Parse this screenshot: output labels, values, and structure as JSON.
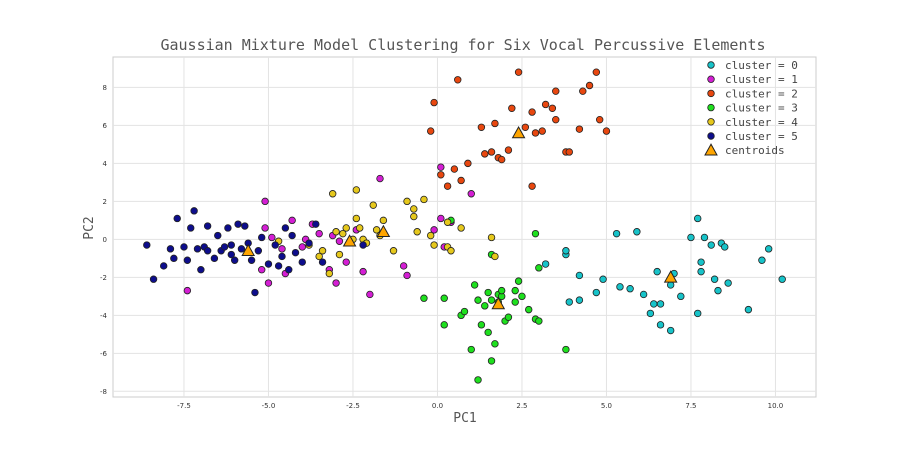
{
  "chart_data": {
    "type": "scatter",
    "title": "Gaussian Mixture Model Clustering for Six Vocal Percussive Elements",
    "xlabel": "PC1",
    "ylabel": "PC2",
    "xlim": [
      -9.6,
      11.2
    ],
    "ylim": [
      -8.3,
      9.6
    ],
    "xticks": [
      -7.5,
      -5.0,
      -2.5,
      0.0,
      2.5,
      5.0,
      7.5,
      10.0
    ],
    "xtick_labels": [
      "-7.5",
      "-5.0",
      "-2.5",
      "0.0",
      "2.5",
      "5.0",
      "7.5",
      "10.0"
    ],
    "yticks": [
      -8,
      -6,
      -4,
      -2,
      0,
      2,
      4,
      6,
      8
    ],
    "ytick_labels": [
      "-8",
      "-6",
      "-4",
      "-2",
      "0",
      "2",
      "4",
      "6",
      "8"
    ],
    "grid": true,
    "legend_position": "top-right",
    "series": [
      {
        "name": "cluster = 0",
        "color": "#17c3c9",
        "points": [
          [
            3.8,
            -0.8
          ],
          [
            4.2,
            -1.9
          ],
          [
            3.9,
            -3.3
          ],
          [
            4.2,
            -3.2
          ],
          [
            4.7,
            -2.8
          ],
          [
            4.9,
            -2.1
          ],
          [
            5.3,
            0.3
          ],
          [
            5.4,
            -2.5
          ],
          [
            5.9,
            0.4
          ],
          [
            6.1,
            -2.9
          ],
          [
            6.3,
            -3.9
          ],
          [
            6.4,
            -3.4
          ],
          [
            6.5,
            -1.7
          ],
          [
            6.6,
            -3.4
          ],
          [
            6.6,
            -4.5
          ],
          [
            6.9,
            -2.4
          ],
          [
            6.9,
            -4.8
          ],
          [
            7.0,
            -1.8
          ],
          [
            7.2,
            -3.0
          ],
          [
            7.5,
            0.1
          ],
          [
            7.7,
            1.1
          ],
          [
            7.7,
            -3.9
          ],
          [
            7.8,
            -1.2
          ],
          [
            7.9,
            0.1
          ],
          [
            7.8,
            -1.7
          ],
          [
            8.1,
            -0.3
          ],
          [
            8.2,
            -2.1
          ],
          [
            8.3,
            -2.7
          ],
          [
            8.4,
            -0.2
          ],
          [
            8.5,
            -0.4
          ],
          [
            8.6,
            -2.3
          ],
          [
            9.2,
            -3.7
          ],
          [
            9.6,
            -1.1
          ],
          [
            9.8,
            -0.5
          ],
          [
            10.2,
            -2.1
          ],
          [
            3.2,
            -1.3
          ],
          [
            3.8,
            -0.6
          ],
          [
            5.7,
            -2.6
          ]
        ]
      },
      {
        "name": "cluster = 1",
        "color": "#d41ed4",
        "points": [
          [
            -7.4,
            -2.7
          ],
          [
            -5.2,
            -1.6
          ],
          [
            -5.1,
            0.6
          ],
          [
            -5.1,
            2.0
          ],
          [
            -5.0,
            -2.3
          ],
          [
            -4.9,
            0.1
          ],
          [
            -4.6,
            -0.5
          ],
          [
            -4.5,
            -1.8
          ],
          [
            -4.3,
            1.0
          ],
          [
            -4.0,
            -0.4
          ],
          [
            -3.9,
            0.0
          ],
          [
            -3.7,
            0.8
          ],
          [
            -3.5,
            0.3
          ],
          [
            -3.2,
            -1.6
          ],
          [
            -3.0,
            -2.3
          ],
          [
            -2.9,
            -0.1
          ],
          [
            -2.7,
            -1.2
          ],
          [
            -2.2,
            -1.7
          ],
          [
            -2.0,
            -2.9
          ],
          [
            -1.7,
            3.2
          ],
          [
            -1.0,
            -1.4
          ],
          [
            -0.9,
            -1.9
          ],
          [
            -0.1,
            0.5
          ],
          [
            0.1,
            1.1
          ],
          [
            0.1,
            3.8
          ],
          [
            0.4,
            0.9
          ],
          [
            0.2,
            -0.4
          ],
          [
            1.0,
            2.4
          ],
          [
            -2.4,
            0.5
          ],
          [
            -3.1,
            0.2
          ]
        ]
      },
      {
        "name": "cluster = 2",
        "color": "#e8470f",
        "points": [
          [
            -0.2,
            5.7
          ],
          [
            -0.1,
            7.2
          ],
          [
            0.1,
            3.4
          ],
          [
            0.3,
            2.8
          ],
          [
            0.6,
            8.4
          ],
          [
            0.7,
            3.1
          ],
          [
            0.9,
            4.0
          ],
          [
            1.3,
            5.9
          ],
          [
            1.4,
            4.5
          ],
          [
            1.6,
            4.6
          ],
          [
            1.7,
            6.1
          ],
          [
            1.8,
            4.3
          ],
          [
            1.9,
            4.2
          ],
          [
            2.1,
            4.7
          ],
          [
            2.2,
            6.9
          ],
          [
            2.4,
            8.8
          ],
          [
            2.6,
            5.9
          ],
          [
            2.8,
            6.7
          ],
          [
            2.9,
            5.6
          ],
          [
            3.1,
            5.7
          ],
          [
            3.2,
            7.1
          ],
          [
            3.4,
            6.9
          ],
          [
            3.5,
            6.3
          ],
          [
            3.5,
            7.8
          ],
          [
            3.8,
            4.6
          ],
          [
            3.9,
            4.6
          ],
          [
            4.2,
            5.8
          ],
          [
            4.3,
            7.8
          ],
          [
            4.5,
            8.1
          ],
          [
            4.7,
            8.8
          ],
          [
            4.8,
            6.3
          ],
          [
            5.0,
            5.7
          ],
          [
            2.8,
            2.8
          ],
          [
            0.5,
            3.7
          ]
        ]
      },
      {
        "name": "cluster = 3",
        "color": "#1ee01e",
        "points": [
          [
            -0.4,
            -3.1
          ],
          [
            0.2,
            -4.5
          ],
          [
            0.2,
            -3.1
          ],
          [
            0.4,
            1.0
          ],
          [
            0.7,
            -4.0
          ],
          [
            0.8,
            -3.8
          ],
          [
            1.0,
            -5.8
          ],
          [
            1.1,
            -2.4
          ],
          [
            1.2,
            -3.2
          ],
          [
            1.2,
            -7.4
          ],
          [
            1.3,
            -4.5
          ],
          [
            1.4,
            -3.5
          ],
          [
            1.5,
            -2.8
          ],
          [
            1.6,
            -6.4
          ],
          [
            1.6,
            -3.2
          ],
          [
            1.6,
            -0.8
          ],
          [
            1.7,
            -5.5
          ],
          [
            1.8,
            -2.9
          ],
          [
            1.8,
            -3.3
          ],
          [
            1.9,
            -3.0
          ],
          [
            1.9,
            -2.7
          ],
          [
            2.0,
            -4.3
          ],
          [
            2.1,
            -4.1
          ],
          [
            2.3,
            -2.7
          ],
          [
            2.4,
            -2.2
          ],
          [
            2.5,
            -3.0
          ],
          [
            2.7,
            -3.7
          ],
          [
            2.9,
            0.3
          ],
          [
            2.9,
            -4.2
          ],
          [
            3.0,
            -4.3
          ],
          [
            3.0,
            -1.5
          ],
          [
            3.8,
            -5.8
          ],
          [
            1.5,
            -4.9
          ],
          [
            2.3,
            -3.3
          ]
        ]
      },
      {
        "name": "cluster = 4",
        "color": "#e6c81c",
        "points": [
          [
            -4.7,
            -0.1
          ],
          [
            -3.8,
            -0.3
          ],
          [
            -3.5,
            -0.9
          ],
          [
            -3.4,
            -0.6
          ],
          [
            -3.2,
            -1.8
          ],
          [
            -3.1,
            2.4
          ],
          [
            -3.0,
            0.4
          ],
          [
            -2.9,
            -0.8
          ],
          [
            -2.8,
            0.3
          ],
          [
            -2.7,
            0.6
          ],
          [
            -2.4,
            2.6
          ],
          [
            -2.4,
            1.1
          ],
          [
            -2.3,
            0.6
          ],
          [
            -2.2,
            0.0
          ],
          [
            -2.1,
            -0.2
          ],
          [
            -1.9,
            1.8
          ],
          [
            -1.8,
            0.5
          ],
          [
            -1.7,
            0.2
          ],
          [
            -1.6,
            1.0
          ],
          [
            -1.3,
            -0.6
          ],
          [
            -0.9,
            2.0
          ],
          [
            -0.7,
            1.6
          ],
          [
            -0.7,
            1.2
          ],
          [
            -0.6,
            0.4
          ],
          [
            -0.4,
            2.1
          ],
          [
            -0.2,
            0.2
          ],
          [
            -0.1,
            -0.3
          ],
          [
            0.3,
            0.9
          ],
          [
            0.3,
            -0.4
          ],
          [
            0.4,
            -0.6
          ],
          [
            0.7,
            0.6
          ],
          [
            1.6,
            0.1
          ],
          [
            1.7,
            -0.9
          ],
          [
            -2.5,
            0.0
          ]
        ]
      },
      {
        "name": "cluster = 5",
        "color": "#0d0d8c",
        "points": [
          [
            -8.6,
            -0.3
          ],
          [
            -8.4,
            -2.1
          ],
          [
            -8.1,
            -1.4
          ],
          [
            -7.8,
            -1.0
          ],
          [
            -7.7,
            1.1
          ],
          [
            -7.5,
            -0.4
          ],
          [
            -7.4,
            -1.1
          ],
          [
            -7.3,
            0.6
          ],
          [
            -7.2,
            1.5
          ],
          [
            -7.1,
            -0.5
          ],
          [
            -7.0,
            -1.6
          ],
          [
            -6.9,
            -0.4
          ],
          [
            -6.8,
            -0.6
          ],
          [
            -6.8,
            0.7
          ],
          [
            -6.6,
            -1.0
          ],
          [
            -6.5,
            0.2
          ],
          [
            -6.4,
            -0.6
          ],
          [
            -6.3,
            -0.4
          ],
          [
            -6.2,
            0.6
          ],
          [
            -6.1,
            -0.3
          ],
          [
            -6.0,
            -1.1
          ],
          [
            -5.9,
            0.8
          ],
          [
            -5.8,
            -0.5
          ],
          [
            -5.7,
            0.7
          ],
          [
            -5.6,
            -0.2
          ],
          [
            -5.5,
            -1.1
          ],
          [
            -5.4,
            -2.8
          ],
          [
            -5.3,
            -0.6
          ],
          [
            -5.2,
            0.1
          ],
          [
            -5.0,
            -1.3
          ],
          [
            -4.8,
            -0.3
          ],
          [
            -4.7,
            -1.4
          ],
          [
            -4.6,
            -0.9
          ],
          [
            -4.5,
            0.6
          ],
          [
            -4.4,
            -1.6
          ],
          [
            -4.3,
            0.2
          ],
          [
            -4.2,
            -0.7
          ],
          [
            -4.0,
            -1.2
          ],
          [
            -3.8,
            -0.2
          ],
          [
            -3.6,
            0.8
          ],
          [
            -3.4,
            -1.2
          ],
          [
            -2.2,
            -0.3
          ],
          [
            -7.9,
            -0.5
          ],
          [
            -6.1,
            -0.8
          ]
        ]
      }
    ],
    "centroids": {
      "name": "centroids",
      "color": "#ffa500",
      "points": [
        [
          6.9,
          -2.0
        ],
        [
          -2.6,
          -0.1
        ],
        [
          2.4,
          5.6
        ],
        [
          1.8,
          -3.4
        ],
        [
          -1.6,
          0.4
        ],
        [
          -5.6,
          -0.6
        ]
      ]
    }
  }
}
